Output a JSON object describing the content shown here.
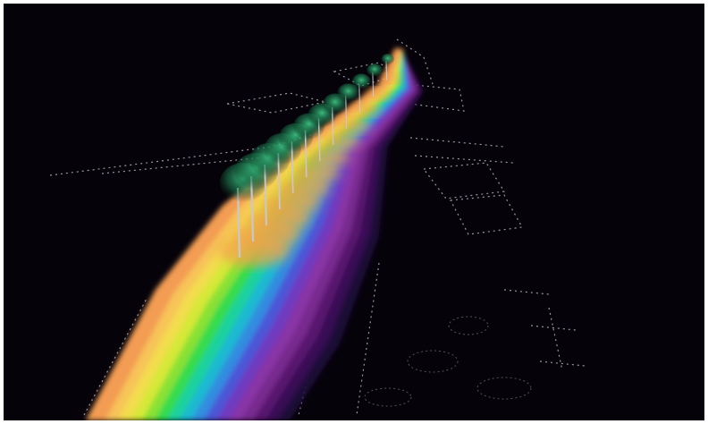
{
  "scene": {
    "subject": "lighting-illuminance-visualization",
    "background_color": "#06020a",
    "frame_color": "#ffffff",
    "luminaire_count": 12,
    "contour_palette": [
      "#1a0a3a",
      "#3a0f55",
      "#5a1a70",
      "#7a2a90",
      "#8a36a8",
      "#6f3cc0",
      "#4a57d8",
      "#2f8fe0",
      "#1fbcd0",
      "#1fd39a",
      "#38db4a",
      "#8ee233",
      "#d9e83a",
      "#f3dc4e",
      "#f7c25a",
      "#f29a52"
    ],
    "glow_color": "#1f8a5a",
    "pole_color": "#c8c8d0",
    "wireframe_color": "#e6e6f0"
  }
}
